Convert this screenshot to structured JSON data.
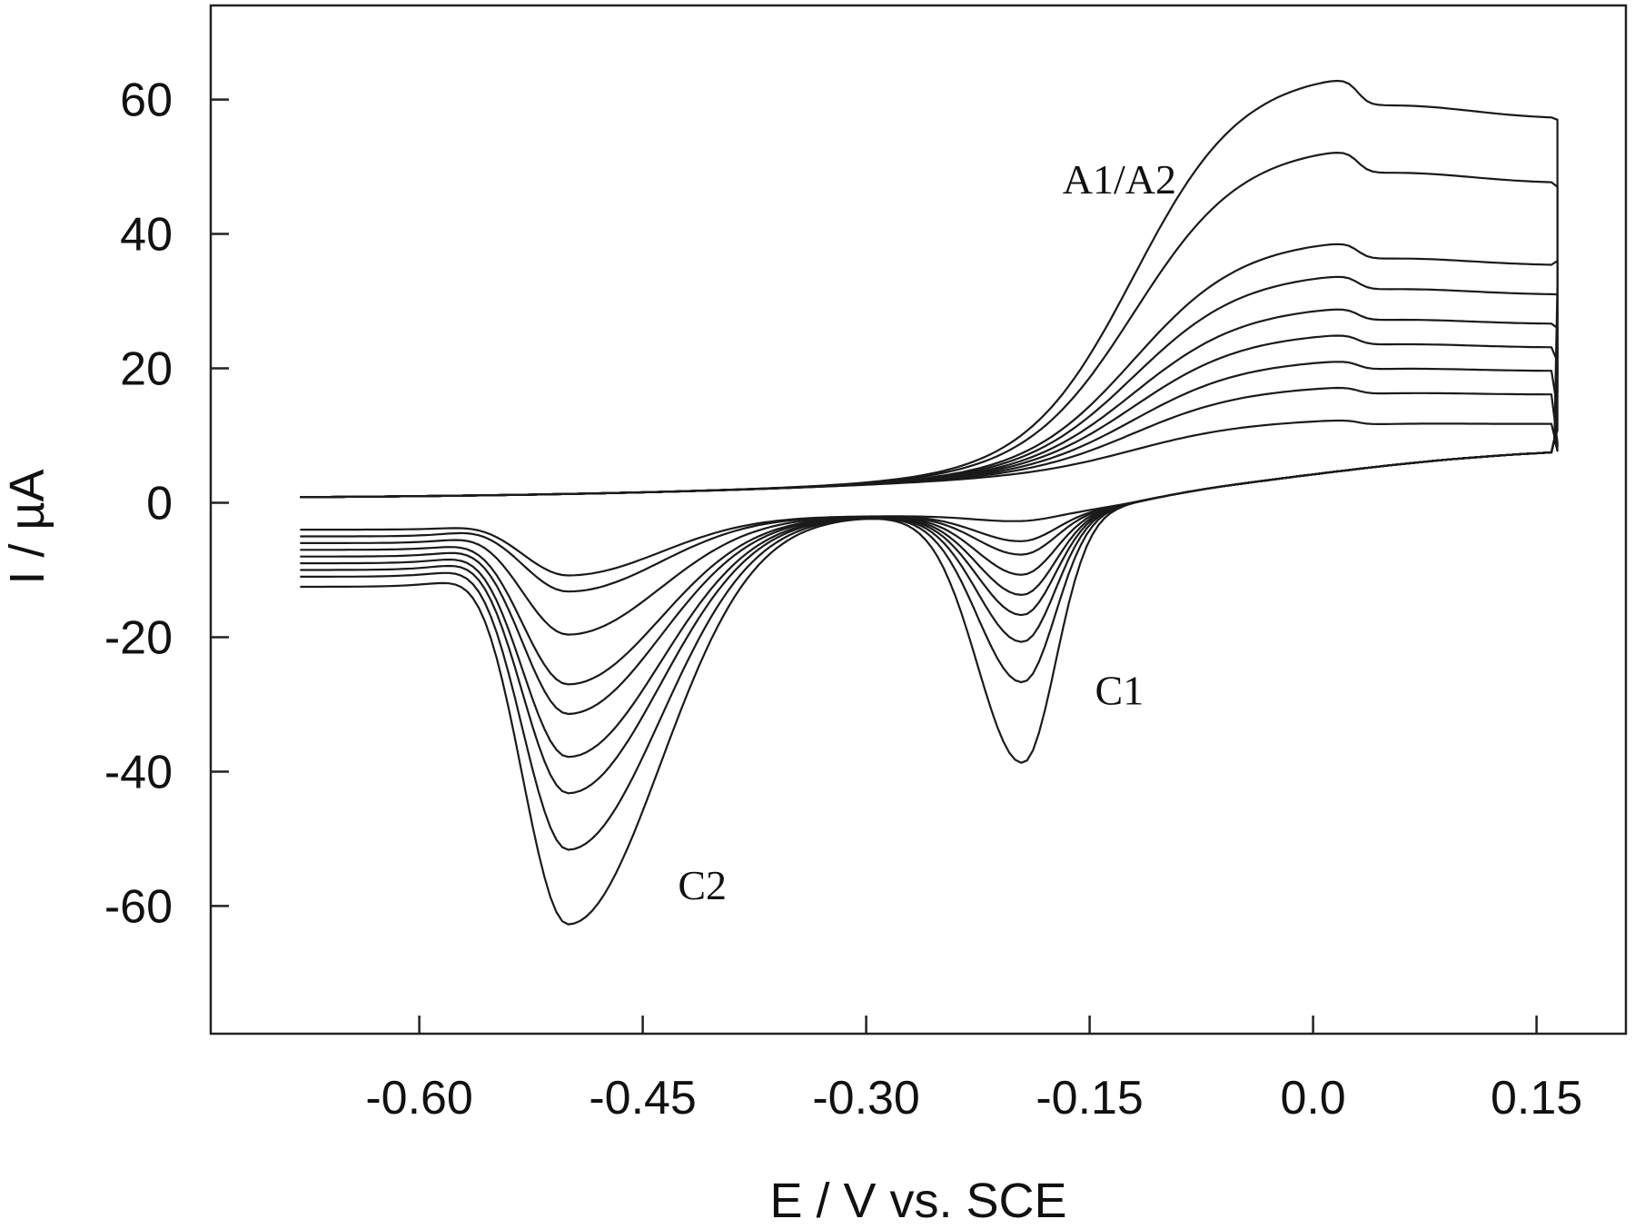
{
  "chart_data": {
    "type": "line",
    "xlabel": "E / V  vs. SCE",
    "ylabel": "I / µA",
    "xlim": [
      -0.74,
      0.21
    ],
    "ylim": [
      -79,
      74
    ],
    "xticks": [
      -0.6,
      -0.45,
      -0.3,
      -0.15,
      0.0,
      0.15
    ],
    "xtick_labels": [
      "-0.60",
      "-0.45",
      "-0.30",
      "-0.15",
      "0.0",
      "0.15"
    ],
    "yticks": [
      -60,
      -40,
      -20,
      0,
      20,
      40,
      60
    ],
    "ytick_labels": [
      "-60",
      "-40",
      "-20",
      "0",
      "20",
      "40",
      "60"
    ],
    "grid": false,
    "annotations": [
      {
        "text": "A1/A2",
        "x": -0.13,
        "y": 46
      },
      {
        "text": "C1",
        "x": -0.13,
        "y": -30
      },
      {
        "text": "C2",
        "x": -0.41,
        "y": -59
      }
    ],
    "x_start": -0.68,
    "x_end": 0.16,
    "series": [
      {
        "c1": -1,
        "c2": -10,
        "base": -2.0,
        "anodic": 11,
        "vert": 8
      },
      {
        "c1": -4,
        "c2": -13,
        "base": -3.0,
        "anodic": 16,
        "vert": 9
      },
      {
        "c1": -6,
        "c2": -20,
        "base": -4.0,
        "anodic": 20,
        "vert": 14
      },
      {
        "c1": -9,
        "c2": -28,
        "base": -5.0,
        "anodic": 24,
        "vert": 21
      },
      {
        "c1": -12,
        "c2": -33,
        "base": -6.0,
        "anodic": 28,
        "vert": 26
      },
      {
        "c1": -15,
        "c2": -40,
        "base": -7.0,
        "anodic": 33,
        "vert": 31
      },
      {
        "c1": -19,
        "c2": -46,
        "base": -8.0,
        "anodic": 38,
        "vert": 36
      },
      {
        "c1": -25,
        "c2": -55,
        "base": -9.0,
        "anodic": 52,
        "vert": 47
      },
      {
        "c1": -37,
        "c2": -67,
        "base": -10.5,
        "anodic": 63,
        "vert": 57
      }
    ]
  }
}
